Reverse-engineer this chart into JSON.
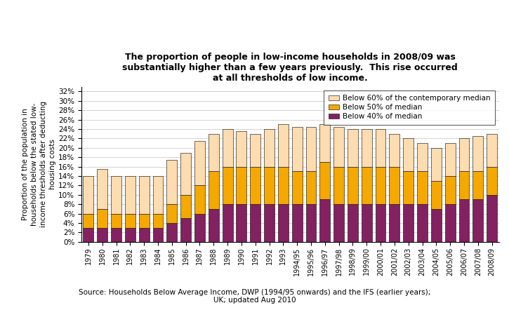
{
  "years": [
    "1979",
    "1980",
    "1981",
    "1982",
    "1983",
    "1984",
    "1985",
    "1986",
    "1987",
    "1988",
    "1989",
    "1990",
    "1991",
    "1992",
    "1993",
    "1994/95",
    "1995/96",
    "1996/97",
    "1997/98",
    "1998/99",
    "1999/00",
    "2000/01",
    "2001/02",
    "2002/03",
    "2003/04",
    "2004/05",
    "2005/06",
    "2006/07",
    "2007/08",
    "2008/09"
  ],
  "below40": [
    3,
    3,
    3,
    3,
    3,
    3,
    4,
    5,
    6,
    7,
    8,
    8,
    8,
    8,
    8,
    8,
    8,
    9,
    8,
    8,
    8,
    8,
    8,
    8,
    8,
    7,
    8,
    9,
    9,
    10
  ],
  "below50_extra": [
    3,
    4,
    3,
    3,
    3,
    3,
    4,
    5,
    6,
    8,
    8,
    8,
    8,
    8,
    8,
    7,
    7,
    8,
    8,
    8,
    8,
    8,
    8,
    7,
    7,
    6,
    6,
    6,
    6,
    6
  ],
  "below60_extra": [
    8,
    8.5,
    8,
    8,
    8,
    8,
    9.5,
    9,
    9.5,
    8,
    8,
    7.5,
    7,
    8,
    9,
    9.5,
    9.5,
    8,
    8.5,
    8,
    8,
    8,
    7,
    7,
    6,
    7,
    7,
    7,
    7.5,
    7
  ],
  "color_40": "#832161",
  "color_50": "#F5A800",
  "color_60": "#FDDCB0",
  "title": "The proportion of people in low-income households in 2008/09 was\nsubstantially higher than a few years previously.  This rise occurred\nat all thresholds of low income.",
  "ylabel": "Proportion of the population in\nhouseholds below the stated low-\nincome thresholds after deducting\nhousing costs",
  "source": "Source: Households Below Average Income, DWP (1994/95 onwards) and the IFS (earlier years);\nUK; updated Aug 2010",
  "legend_labels": [
    "Below 60% of the contemporary median",
    "Below 50% of median",
    "Below 40% of median"
  ],
  "yticks": [
    0,
    2,
    4,
    6,
    8,
    10,
    12,
    14,
    16,
    18,
    20,
    22,
    24,
    26,
    28,
    30,
    32
  ],
  "ylim": [
    0,
    33
  ]
}
